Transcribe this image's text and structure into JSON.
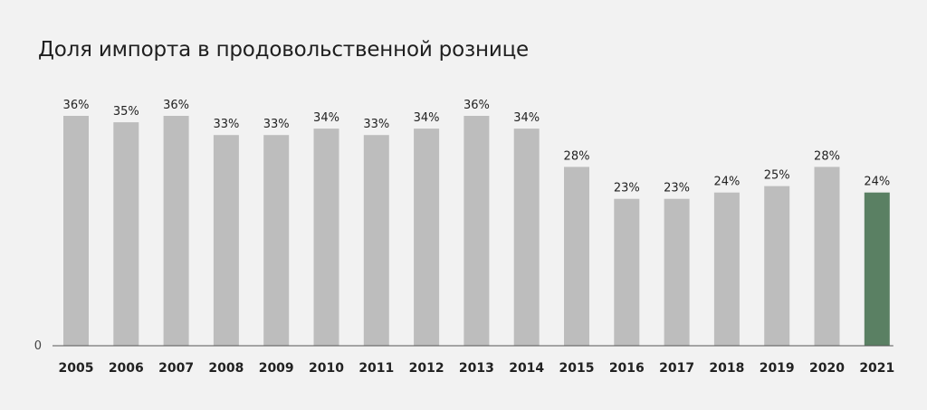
{
  "chart_data": {
    "type": "bar",
    "title": "Доля импорта в продовольственной рознице",
    "xlabel": "",
    "ylabel": "",
    "categories": [
      "2005",
      "2006",
      "2007",
      "2008",
      "2009",
      "2010",
      "2011",
      "2012",
      "2013",
      "2014",
      "2015",
      "2016",
      "2017",
      "2018",
      "2019",
      "2020",
      "2021"
    ],
    "values": [
      36,
      35,
      36,
      33,
      33,
      34,
      33,
      34,
      36,
      34,
      28,
      23,
      23,
      24,
      25,
      28,
      24
    ],
    "value_labels": [
      "36%",
      "35%",
      "36%",
      "33%",
      "33%",
      "34%",
      "33%",
      "34%",
      "36%",
      "34%",
      "28%",
      "23%",
      "23%",
      "24%",
      "25%",
      "28%",
      "24%"
    ],
    "y_axis_tick": "0",
    "ylim": [
      0,
      36
    ],
    "grid": false,
    "colors": {
      "bar": "#bdbdbd",
      "highlight_bar": "#5a8063",
      "axis": "#555555",
      "background": "#f2f2f2"
    },
    "highlight_index": 16
  }
}
